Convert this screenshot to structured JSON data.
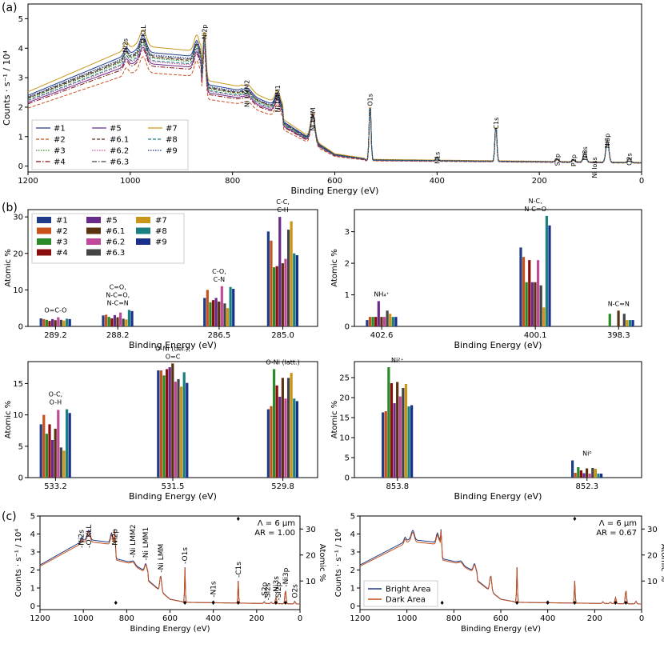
{
  "panel_labels": [
    "(a)",
    "(b)",
    "(c)"
  ],
  "series_labels": [
    "#1",
    "#2",
    "#3",
    "#4",
    "#5",
    "#6.1",
    "#6.2",
    "#6.3",
    "#7",
    "#8",
    "#9"
  ],
  "series_colors": [
    "#1f3c88",
    "#c8511c",
    "#2a8a2a",
    "#8b0e0e",
    "#6a2a8a",
    "#5a3210",
    "#c04a9a",
    "#444444",
    "#c9961a",
    "#1a7f7f",
    "#1a2f8a"
  ],
  "chart_data": [
    {
      "id": "a",
      "type": "line",
      "xlabel": "Binding Energy (eV)",
      "ylabel": "Counts · s⁻¹ / 10⁴",
      "xlim": [
        1200,
        0
      ],
      "ylim": [
        -0.2,
        5.5
      ],
      "xticks": [
        "1200",
        "1000",
        "800",
        "600",
        "400",
        "200",
        "0"
      ],
      "yticks": [
        "0",
        "1",
        "2",
        "3",
        "4",
        "5"
      ],
      "legend": "lower-left",
      "annotations": [
        {
          "text": "Ni2s",
          "x": 1010
        },
        {
          "text": "O KLL",
          "x": 975
        },
        {
          "text": "Ni2p",
          "x": 855
        },
        {
          "text": "Ni LMM2",
          "x": 772
        },
        {
          "text": "Ni LMM1",
          "x": 712
        },
        {
          "text": "Ni LMM",
          "x": 643
        },
        {
          "text": "O1s",
          "x": 531
        },
        {
          "text": "N1s",
          "x": 400
        },
        {
          "text": "C1s",
          "x": 285
        },
        {
          "text": "S2p",
          "x": 165
        },
        {
          "text": "P2p",
          "x": 133
        },
        {
          "text": "Ni3s",
          "x": 111
        },
        {
          "text": "Ni loss",
          "x": 92
        },
        {
          "text": "Ni3p",
          "x": 67
        },
        {
          "text": "O2s",
          "x": 24
        }
      ]
    },
    {
      "id": "b1",
      "type": "bar",
      "xlabel": "Binding Energy (eV)",
      "ylabel": "Atomic %",
      "ylim": [
        0,
        32
      ],
      "yticks": [
        "0",
        "10",
        "20",
        "30"
      ],
      "categories": [
        "289.2",
        "288.2",
        "286.5",
        "285.0"
      ],
      "cat_labels": [
        "O=C-O",
        "C=O,\nN-C=O,\nN-C=N",
        "C-O,\nC-N",
        "C-C,\nC-H"
      ],
      "legend": "upper-left",
      "values": [
        [
          2.2,
          2.0,
          1.8,
          1.5,
          2.0,
          1.7,
          2.5,
          1.8,
          1.6,
          2.1,
          2.0
        ],
        [
          3.0,
          3.2,
          2.6,
          2.2,
          3.1,
          2.5,
          3.8,
          2.1,
          1.9,
          4.5,
          4.2
        ],
        [
          7.8,
          10.0,
          6.6,
          7.2,
          7.8,
          6.8,
          11.0,
          6.3,
          5.0,
          10.8,
          10.3
        ],
        [
          26.0,
          23.5,
          16.2,
          16.5,
          30.0,
          17.3,
          18.5,
          26.5,
          28.8,
          20.0,
          19.5
        ]
      ]
    },
    {
      "id": "b2",
      "type": "bar",
      "xlabel": "Binding Energy (eV)",
      "ylabel": "Atomic %",
      "ylim": [
        0,
        3.7
      ],
      "yticks": [
        "0",
        "1",
        "2",
        "3"
      ],
      "categories": [
        "402.6",
        "400.1",
        "398.3"
      ],
      "cat_labels": [
        "NH₄⁺",
        "N-C,\nN-C=O",
        "N-C=N"
      ],
      "values": [
        [
          0.2,
          0.3,
          0.3,
          0.3,
          0.8,
          0.3,
          0.3,
          0.5,
          0.4,
          0.3,
          0.3
        ],
        [
          2.5,
          2.2,
          1.4,
          2.1,
          1.4,
          1.4,
          2.1,
          1.3,
          0.6,
          3.5,
          3.2
        ],
        [
          0.0,
          0.0,
          0.4,
          0.0,
          0.0,
          0.5,
          0.0,
          0.4,
          0.2,
          0.2,
          0.2
        ]
      ]
    },
    {
      "id": "b3",
      "type": "bar",
      "xlabel": "Binding Energy (eV)",
      "ylabel": "Atomic %",
      "ylim": [
        0,
        18.5
      ],
      "yticks": [
        "0",
        "5",
        "10",
        "15"
      ],
      "categories": [
        "533.2",
        "531.5",
        "529.8"
      ],
      "cat_labels": [
        "O-C,\nO-H",
        "O-Ni (def.),\nO=C",
        "O-Ni (latt.)"
      ],
      "values": [
        [
          8.5,
          10.0,
          7.0,
          8.5,
          6.0,
          7.8,
          10.8,
          4.8,
          4.3,
          10.9,
          10.3
        ],
        [
          17.1,
          17.1,
          16.3,
          17.3,
          17.6,
          18.2,
          15.3,
          15.7,
          14.5,
          16.8,
          15.1
        ],
        [
          10.9,
          11.4,
          17.3,
          14.7,
          12.9,
          15.9,
          12.6,
          15.9,
          16.7,
          12.6,
          12.2
        ]
      ]
    },
    {
      "id": "b4",
      "type": "bar",
      "xlabel": "Binding Energy (eV)",
      "ylabel": "Atomic %",
      "ylim": [
        0,
        29
      ],
      "yticks": [
        "0",
        "5",
        "10",
        "15",
        "20",
        "25"
      ],
      "categories": [
        "853.8",
        "852.3"
      ],
      "cat_labels": [
        "Ni²⁺",
        "Ni⁰"
      ],
      "values": [
        [
          16.3,
          16.6,
          27.6,
          23.6,
          18.6,
          23.9,
          20.3,
          22.4,
          23.4,
          17.8,
          18.1
        ],
        [
          4.3,
          1.2,
          2.6,
          1.8,
          1.1,
          2.3,
          1.0,
          2.4,
          2.2,
          1.0,
          1.0
        ]
      ]
    },
    {
      "id": "c1",
      "type": "line",
      "xlabel": "Binding Energy (eV)",
      "ylabel": "Counts · s⁻¹ / 10⁴",
      "y2label": "Atomic %",
      "xlim": [
        1200,
        0
      ],
      "ylim": [
        -0.2,
        5.0
      ],
      "y2lim": [
        -1,
        35
      ],
      "xticks": [
        "1200",
        "1000",
        "800",
        "600",
        "400",
        "200",
        "0"
      ],
      "yticks": [
        "0",
        "1",
        "2",
        "3",
        "4",
        "5"
      ],
      "y2ticks": [
        "10",
        "20",
        "30"
      ],
      "info": [
        "Λ = 6 μm",
        "AR = 1.00"
      ],
      "annotations": [
        {
          "text": "-Ni2s",
          "x": 1010
        },
        {
          "text": "-O KLL",
          "x": 975
        },
        {
          "text": "-Ni2p",
          "x": 855
        },
        {
          "text": "-Ni LMM2",
          "x": 772
        },
        {
          "text": "-Ni LMM1",
          "x": 712
        },
        {
          "text": "-Ni LMM",
          "x": 643
        },
        {
          "text": "-O1s",
          "x": 531
        },
        {
          "text": "-N1s",
          "x": 400
        },
        {
          "text": "-C1s",
          "x": 285
        },
        {
          "text": "-S2p",
          "x": 165
        },
        {
          "text": "-Si2s",
          "x": 150
        },
        {
          "text": "-Ni3s",
          "x": 111
        },
        {
          "text": "-Si2p",
          "x": 100
        },
        {
          "text": "-Ni3p",
          "x": 67
        },
        {
          "text": "O2s",
          "x": 24
        }
      ]
    },
    {
      "id": "c2",
      "type": "line",
      "xlabel": "Binding Energy (eV)",
      "ylabel": "Counts · s⁻¹ / 10⁴",
      "y2label": "Atomic %",
      "xlim": [
        1200,
        0
      ],
      "ylim": [
        -0.2,
        5.0
      ],
      "y2lim": [
        -1,
        35
      ],
      "xticks": [
        "1200",
        "1000",
        "800",
        "600",
        "400",
        "200",
        "0"
      ],
      "yticks": [
        "0",
        "1",
        "2",
        "3",
        "4",
        "5"
      ],
      "y2ticks": [
        "10",
        "20",
        "30"
      ],
      "info": [
        "Λ = 6 μm",
        "AR = 0.67"
      ],
      "series": [
        {
          "name": "Bright Area",
          "color": "#1f3c88"
        },
        {
          "name": "Dark Area",
          "color": "#c8511c"
        }
      ],
      "legend": "lower-left"
    }
  ]
}
